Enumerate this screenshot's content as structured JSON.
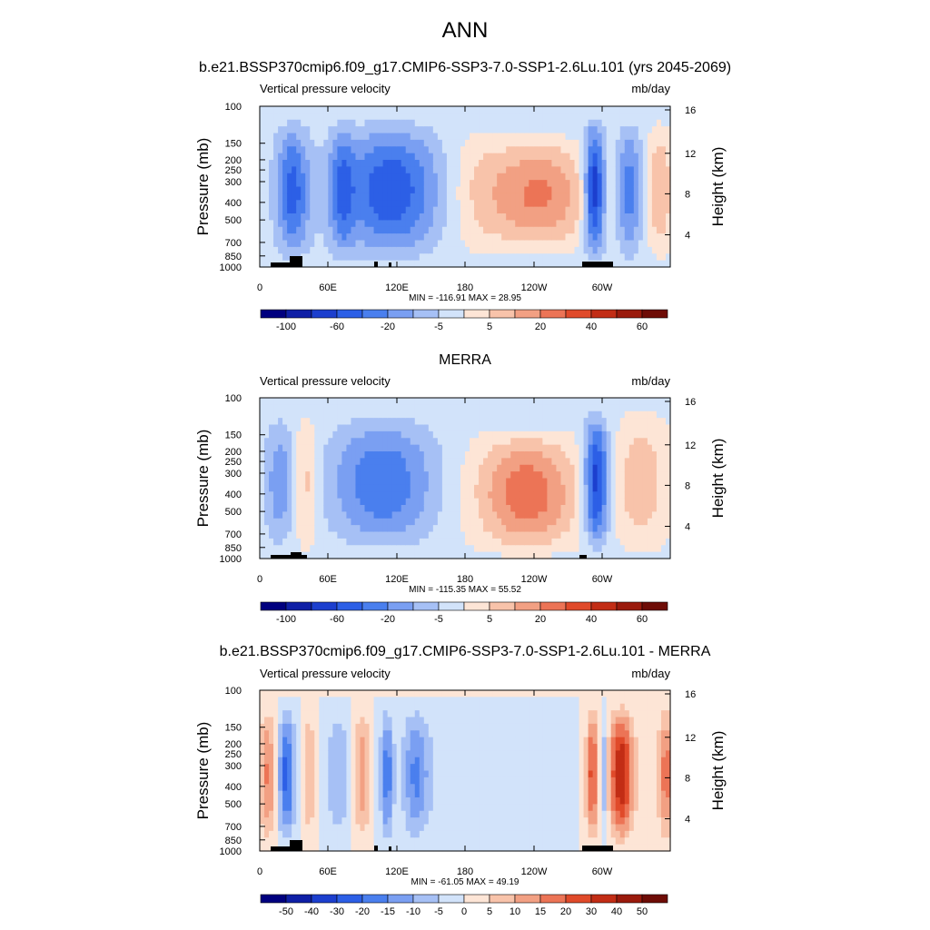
{
  "main_title": "ANN",
  "chart_data": [
    {
      "type": "heatmap",
      "title": "b.e21.BSSP370cmip6.f09_g17.CMIP6-SSP3-7.0-SSP1-2.6Lu.101 (yrs 2045-2069)",
      "left_label": "Vertical pressure velocity",
      "right_label": "mb/day",
      "ylabel": "Pressure (mb)",
      "y2label": "Height (km)",
      "x_ticks": [
        "0",
        "60E",
        "120E",
        "180",
        "120W",
        "60W"
      ],
      "y_ticks": [
        "100",
        "150",
        "200",
        "250",
        "300",
        "400",
        "500",
        "700",
        "850",
        "1000"
      ],
      "y2_ticks": [
        "16",
        "12",
        "8",
        "4"
      ],
      "stats": "MIN = -116.91  MAX =  28.95",
      "colorbar_labels": [
        "-100",
        "-60",
        "-20",
        "-5",
        "5",
        "20",
        "40",
        "60"
      ]
    },
    {
      "type": "heatmap",
      "title": "MERRA",
      "left_label": "Vertical pressure velocity",
      "right_label": "mb/day",
      "ylabel": "Pressure (mb)",
      "y2label": "Height (km)",
      "x_ticks": [
        "0",
        "60E",
        "120E",
        "180",
        "120W",
        "60W"
      ],
      "y_ticks": [
        "100",
        "150",
        "200",
        "250",
        "300",
        "400",
        "500",
        "700",
        "850",
        "1000"
      ],
      "y2_ticks": [
        "16",
        "12",
        "8",
        "4"
      ],
      "stats": "MIN = -115.35  MAX =  55.52",
      "colorbar_labels": [
        "-100",
        "-60",
        "-20",
        "-5",
        "5",
        "20",
        "40",
        "60"
      ]
    },
    {
      "type": "heatmap",
      "title": "b.e21.BSSP370cmip6.f09_g17.CMIP6-SSP3-7.0-SSP1-2.6Lu.101 - MERRA",
      "left_label": "Vertical pressure velocity",
      "right_label": "mb/day",
      "ylabel": "Pressure (mb)",
      "y2label": "Height (km)",
      "x_ticks": [
        "0",
        "60E",
        "120E",
        "180",
        "120W",
        "60W"
      ],
      "y_ticks": [
        "100",
        "150",
        "200",
        "250",
        "300",
        "400",
        "500",
        "700",
        "850",
        "1000"
      ],
      "y2_ticks": [
        "16",
        "12",
        "8",
        "4"
      ],
      "stats": "MIN = -61.05  MAX =  49.19",
      "colorbar_labels": [
        "-50",
        "-40",
        "-30",
        "-20",
        "-15",
        "-10",
        "-5",
        "0",
        "5",
        "10",
        "15",
        "20",
        "30",
        "40",
        "50"
      ]
    }
  ],
  "palette": [
    "#00007f",
    "#0f1fa6",
    "#1c3fce",
    "#2c5fe6",
    "#4a7fee",
    "#7a9ff2",
    "#a6c0f5",
    "#d2e3fa",
    "#fde5d6",
    "#f8c3aa",
    "#f2a083",
    "#ec7456",
    "#e04a2a",
    "#c22d15",
    "#9a1a0c",
    "#6e0c06"
  ]
}
